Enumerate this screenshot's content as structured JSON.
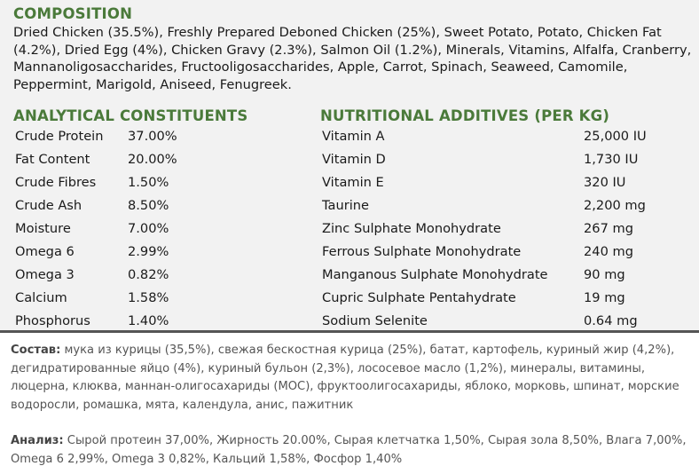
{
  "composition": {
    "heading": "COMPOSITION",
    "text": "Dried Chicken (35.5%), Freshly Prepared Deboned Chicken (25%), Sweet Potato, Potato, Chicken Fat (4.2%), Dried Egg (4%), Chicken Gravy (2.3%), Salmon Oil (1.2%), Minerals, Vitamins, Alfalfa, Cranberry, Mannanoligosaccharides, Fructooligosaccharides, Apple, Carrot, Spinach, Seaweed, Camomile, Peppermint, Marigold, Aniseed, Fenugreek."
  },
  "analytical": {
    "heading": "ANALYTICAL CONSTITUENTS",
    "rows": [
      {
        "name": "Crude Protein",
        "value": "37.00%"
      },
      {
        "name": "Fat Content",
        "value": "20.00%"
      },
      {
        "name": "Crude Fibres",
        "value": "1.50%"
      },
      {
        "name": "Crude Ash",
        "value": "8.50%"
      },
      {
        "name": "Moisture",
        "value": "7.00%"
      },
      {
        "name": "Omega 6",
        "value": "2.99%"
      },
      {
        "name": "Omega 3",
        "value": "0.82%"
      },
      {
        "name": "Calcium",
        "value": "1.58%"
      },
      {
        "name": "Phosphorus",
        "value": "1.40%"
      }
    ]
  },
  "nutritional": {
    "heading": "NUTRITIONAL ADDITIVES (PER KG)",
    "rows": [
      {
        "name": "Vitamin A",
        "value": "25,000 IU"
      },
      {
        "name": "Vitamin D",
        "value": "1,730 IU"
      },
      {
        "name": "Vitamin E",
        "value": "320 IU"
      },
      {
        "name": "Taurine",
        "value": "2,200 mg"
      },
      {
        "name": "Zinc Sulphate Monohydrate",
        "value": "267 mg"
      },
      {
        "name": "Ferrous Sulphate Monohydrate",
        "value": "240 mg"
      },
      {
        "name": "Manganous Sulphate Monohydrate",
        "value": "90 mg"
      },
      {
        "name": "Cupric Sulphate Pentahydrate",
        "value": "19 mg"
      },
      {
        "name": "Sodium Selenite",
        "value": "0.64 mg"
      }
    ]
  },
  "russian": {
    "composition_label": "Состав:",
    "composition_text": " мука из курицы (35,5%), свежая бескостная курица (25%), батат, картофель, куриный жир (4,2%), дегидратированные яйцо (4%), куриный бульон (2,3%), лососевое масло (1,2%), минералы, витамины, люцерна, клюква, маннан-олигосахариды (МОС), фруктоолигосахариды, яблоко, морковь, шпинат, морские водоросли, ромашка, мята, календула, анис, пажитник",
    "analysis_label": "Анализ:",
    "analysis_text": " Сырой протеин 37,00%, Жирность 20.00%, Сырая клетчатка 1,50%, Сырая зола 8,50%, Влага 7,00%, Omega 6 2,99%, Omega 3 0,82%, Кальций 1,58%, Фосфор 1,40%"
  }
}
